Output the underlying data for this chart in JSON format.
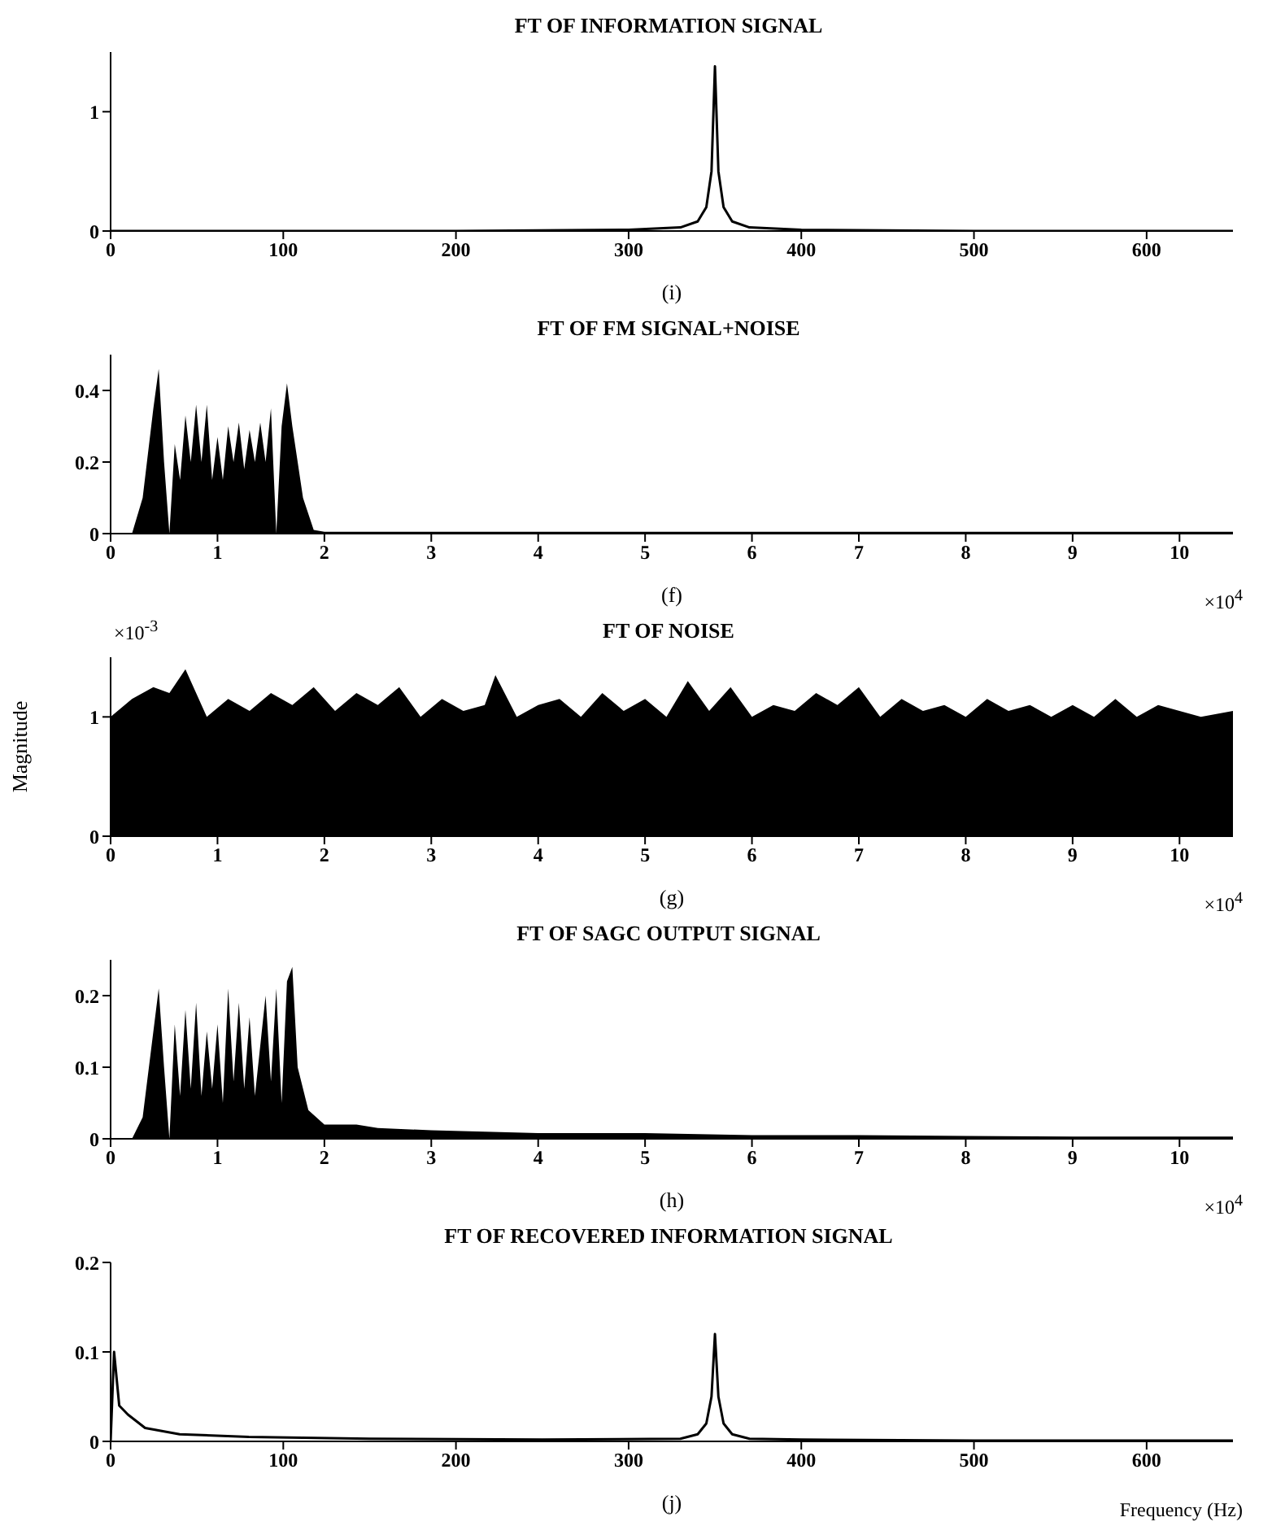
{
  "chart_data": [
    {
      "type": "line",
      "title": "FT OF INFORMATION SIGNAL",
      "xlabel": "(i)",
      "color": "#000000",
      "xlim": [
        0,
        650
      ],
      "xticks": [
        0,
        100,
        200,
        300,
        400,
        500,
        600
      ],
      "ylim": [
        0,
        1.5
      ],
      "yticks": [
        0,
        1
      ],
      "x": [
        0,
        100,
        200,
        300,
        330,
        340,
        345,
        348,
        350,
        352,
        355,
        360,
        370,
        400,
        500,
        650
      ],
      "values": [
        0,
        0,
        0,
        0.01,
        0.03,
        0.08,
        0.2,
        0.5,
        1.38,
        0.5,
        0.2,
        0.08,
        0.03,
        0.01,
        0,
        0
      ]
    },
    {
      "type": "area",
      "title": "FT OF FM SIGNAL+NOISE",
      "xlabel": "(f)",
      "annotations": [
        "×10$^{4}$"
      ],
      "color": "#000000",
      "xlim": [
        0,
        10.5
      ],
      "xticks": [
        0,
        1,
        2,
        3,
        4,
        5,
        6,
        7,
        8,
        9,
        10
      ],
      "ylim": [
        0,
        0.5
      ],
      "yticks": [
        0,
        0.2,
        0.4
      ],
      "x": [
        0,
        0.2,
        0.3,
        0.4,
        0.45,
        0.5,
        0.55,
        0.6,
        0.65,
        0.7,
        0.75,
        0.8,
        0.85,
        0.9,
        0.95,
        1.0,
        1.05,
        1.1,
        1.15,
        1.2,
        1.25,
        1.3,
        1.35,
        1.4,
        1.45,
        1.5,
        1.55,
        1.6,
        1.65,
        1.7,
        1.8,
        1.9,
        2,
        10.5
      ],
      "values": [
        0,
        0,
        0.1,
        0.35,
        0.46,
        0.2,
        0,
        0.25,
        0.15,
        0.33,
        0.2,
        0.36,
        0.2,
        0.36,
        0.15,
        0.27,
        0.15,
        0.3,
        0.2,
        0.31,
        0.18,
        0.29,
        0.2,
        0.31,
        0.2,
        0.35,
        0,
        0.3,
        0.42,
        0.3,
        0.1,
        0.01,
        0.005,
        0.005
      ]
    },
    {
      "type": "area",
      "title": "FT OF NOISE",
      "xlabel": "(g)",
      "ylabel": "Magnitude",
      "annotations": [
        "×10$^{-3}$",
        "×10$^{4}$"
      ],
      "color": "#000000",
      "xlim": [
        0,
        10.5
      ],
      "xticks": [
        0,
        1,
        2,
        3,
        4,
        5,
        6,
        7,
        8,
        9,
        10
      ],
      "ylim": [
        0,
        1.5
      ],
      "yticks": [
        0,
        1
      ],
      "x": [
        0,
        0.2,
        0.4,
        0.55,
        0.7,
        0.9,
        1.1,
        1.3,
        1.5,
        1.7,
        1.9,
        2.1,
        2.3,
        2.5,
        2.7,
        2.9,
        3.1,
        3.3,
        3.5,
        3.6,
        3.8,
        4.0,
        4.2,
        4.4,
        4.6,
        4.8,
        5.0,
        5.2,
        5.4,
        5.6,
        5.8,
        6.0,
        6.2,
        6.4,
        6.6,
        6.8,
        7.0,
        7.2,
        7.4,
        7.6,
        7.8,
        8.0,
        8.2,
        8.4,
        8.6,
        8.8,
        9.0,
        9.2,
        9.4,
        9.6,
        9.8,
        10.0,
        10.2,
        10.5
      ],
      "values": [
        1.0,
        1.15,
        1.25,
        1.2,
        1.4,
        1.0,
        1.15,
        1.05,
        1.2,
        1.1,
        1.25,
        1.05,
        1.2,
        1.1,
        1.25,
        1.0,
        1.15,
        1.05,
        1.1,
        1.35,
        1.0,
        1.1,
        1.15,
        1.0,
        1.2,
        1.05,
        1.15,
        1.0,
        1.3,
        1.05,
        1.25,
        1.0,
        1.1,
        1.05,
        1.2,
        1.1,
        1.25,
        1.0,
        1.15,
        1.05,
        1.1,
        1.0,
        1.15,
        1.05,
        1.1,
        1.0,
        1.1,
        1.0,
        1.15,
        1.0,
        1.1,
        1.05,
        1.0,
        1.05
      ]
    },
    {
      "type": "area",
      "title": "FT OF SAGC OUTPUT SIGNAL",
      "xlabel": "(h)",
      "annotations": [
        "×10$^{4}$"
      ],
      "color": "#000000",
      "xlim": [
        0,
        10.5
      ],
      "xticks": [
        0,
        1,
        2,
        3,
        4,
        5,
        6,
        7,
        8,
        9,
        10
      ],
      "ylim": [
        0,
        0.25
      ],
      "yticks": [
        0,
        0.1,
        0.2
      ],
      "x": [
        0,
        0.2,
        0.3,
        0.4,
        0.45,
        0.5,
        0.55,
        0.6,
        0.65,
        0.7,
        0.75,
        0.8,
        0.85,
        0.9,
        0.95,
        1.0,
        1.05,
        1.1,
        1.15,
        1.2,
        1.25,
        1.3,
        1.35,
        1.45,
        1.5,
        1.55,
        1.6,
        1.65,
        1.7,
        1.75,
        1.85,
        2,
        2.3,
        2.5,
        3,
        3.5,
        4,
        5,
        6,
        7,
        8,
        9,
        10.5
      ],
      "values": [
        0,
        0,
        0.03,
        0.15,
        0.21,
        0.1,
        0,
        0.16,
        0.06,
        0.18,
        0.07,
        0.19,
        0.06,
        0.15,
        0.07,
        0.16,
        0.05,
        0.21,
        0.08,
        0.19,
        0.07,
        0.17,
        0.06,
        0.2,
        0.08,
        0.21,
        0.05,
        0.22,
        0.24,
        0.1,
        0.04,
        0.02,
        0.02,
        0.015,
        0.012,
        0.01,
        0.008,
        0.008,
        0.005,
        0.005,
        0.004,
        0.003,
        0.003
      ]
    },
    {
      "type": "line",
      "title": "FT OF RECOVERED INFORMATION SIGNAL",
      "xlabel": "(j)",
      "annotations": [
        "Frequency (Hz)"
      ],
      "color": "#000000",
      "xlim": [
        0,
        650
      ],
      "xticks": [
        0,
        100,
        200,
        300,
        400,
        500,
        600
      ],
      "ylim": [
        0,
        0.2
      ],
      "yticks": [
        0,
        0.1,
        0.2
      ],
      "x": [
        0,
        2,
        5,
        10,
        20,
        40,
        80,
        150,
        250,
        330,
        340,
        345,
        348,
        350,
        352,
        355,
        360,
        370,
        400,
        500,
        650
      ],
      "values": [
        0,
        0.1,
        0.04,
        0.03,
        0.015,
        0.008,
        0.005,
        0.003,
        0.002,
        0.003,
        0.008,
        0.02,
        0.05,
        0.12,
        0.05,
        0.02,
        0.008,
        0.003,
        0.002,
        0.001,
        0.001
      ]
    }
  ]
}
